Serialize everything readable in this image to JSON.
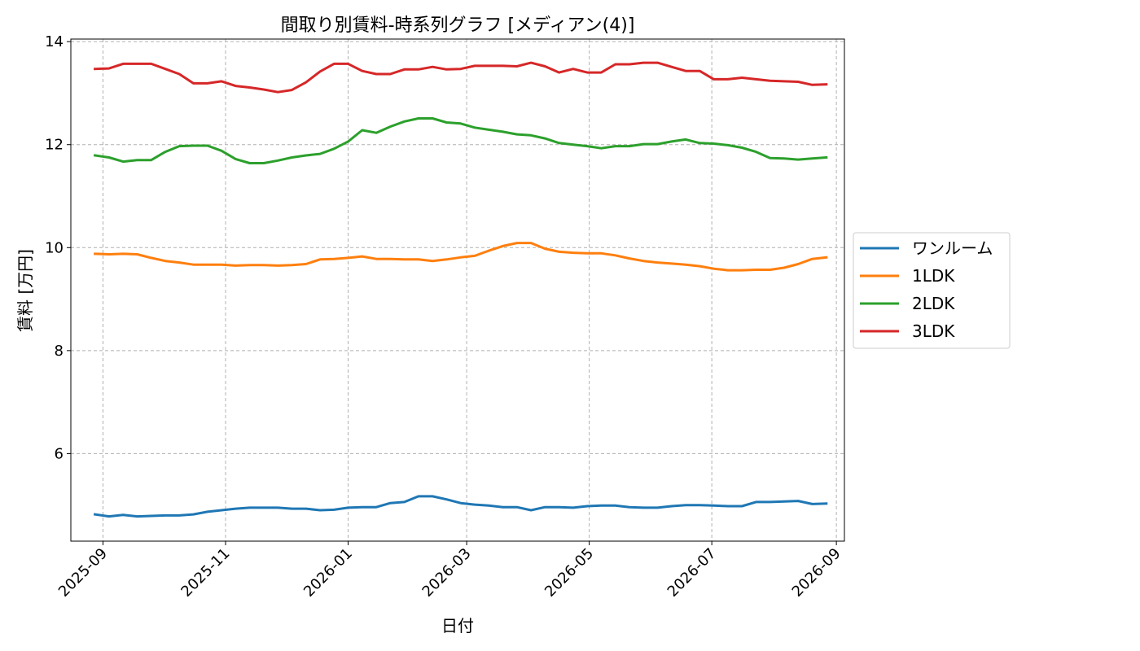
{
  "chart_data": {
    "type": "line",
    "title": "間取り別賃料-時系列グラフ [メディアン(4)]",
    "xlabel": "日付",
    "ylabel": "賃料 [万円]",
    "ylim": [
      4.3,
      14.05
    ],
    "yticks": [
      6,
      8,
      10,
      12,
      14
    ],
    "xlim": [
      "2025-08-16",
      "2026-09-05"
    ],
    "xticks": [
      "2025-09",
      "2025-11",
      "2026-01",
      "2026-03",
      "2026-05",
      "2026-07",
      "2026-09"
    ],
    "grid": true,
    "legend_position": "right-outside",
    "x": [
      "2025-08-28",
      "2025-09-04",
      "2025-09-11",
      "2025-09-18",
      "2025-09-25",
      "2025-10-02",
      "2025-10-09",
      "2025-10-16",
      "2025-10-23",
      "2025-10-30",
      "2025-11-06",
      "2025-11-13",
      "2025-11-20",
      "2025-11-27",
      "2025-12-04",
      "2025-12-11",
      "2025-12-18",
      "2025-12-25",
      "2026-01-01",
      "2026-01-08",
      "2026-01-15",
      "2026-01-22",
      "2026-01-29",
      "2026-02-05",
      "2026-02-12",
      "2026-02-19",
      "2026-02-26",
      "2026-03-05",
      "2026-03-12",
      "2026-03-19",
      "2026-03-26",
      "2026-04-02",
      "2026-04-09",
      "2026-04-16",
      "2026-04-23",
      "2026-04-30",
      "2026-05-07",
      "2026-05-14",
      "2026-05-21",
      "2026-05-28",
      "2026-06-04",
      "2026-06-11",
      "2026-06-18",
      "2026-06-25",
      "2026-07-02",
      "2026-07-09",
      "2026-07-16",
      "2026-07-23",
      "2026-07-30",
      "2026-08-06",
      "2026-08-13",
      "2026-08-20",
      "2026-08-27"
    ],
    "series": [
      {
        "name": "ワンルーム",
        "color": "#1f77b4",
        "values": [
          4.82,
          4.78,
          4.81,
          4.78,
          4.79,
          4.8,
          4.8,
          4.82,
          4.87,
          4.9,
          4.93,
          4.95,
          4.95,
          4.95,
          4.93,
          4.93,
          4.9,
          4.91,
          4.95,
          4.96,
          4.96,
          5.04,
          5.06,
          5.17,
          5.17,
          5.11,
          5.04,
          5.01,
          4.99,
          4.96,
          4.96,
          4.9,
          4.96,
          4.96,
          4.95,
          4.98,
          4.99,
          4.99,
          4.96,
          4.95,
          4.95,
          4.98,
          5.0,
          5.0,
          4.99,
          4.98,
          4.98,
          5.06,
          5.06,
          5.07,
          5.08,
          5.02,
          5.03
        ]
      },
      {
        "name": "1LDK",
        "color": "#ff7f0e",
        "values": [
          9.88,
          9.87,
          9.88,
          9.87,
          9.8,
          9.74,
          9.71,
          9.67,
          9.67,
          9.67,
          9.65,
          9.66,
          9.66,
          9.65,
          9.66,
          9.68,
          9.77,
          9.78,
          9.8,
          9.83,
          9.78,
          9.78,
          9.77,
          9.77,
          9.74,
          9.77,
          9.81,
          9.84,
          9.94,
          10.03,
          10.09,
          10.09,
          9.98,
          9.92,
          9.9,
          9.89,
          9.89,
          9.85,
          9.79,
          9.74,
          9.71,
          9.69,
          9.67,
          9.64,
          9.59,
          9.56,
          9.56,
          9.57,
          9.57,
          9.61,
          9.68,
          9.78,
          9.81
        ]
      },
      {
        "name": "2LDK",
        "color": "#2ca02c",
        "values": [
          11.79,
          11.75,
          11.67,
          11.7,
          11.7,
          11.86,
          11.97,
          11.98,
          11.98,
          11.88,
          11.72,
          11.64,
          11.64,
          11.69,
          11.75,
          11.79,
          11.82,
          11.92,
          12.06,
          12.28,
          12.23,
          12.35,
          12.45,
          12.51,
          12.51,
          12.43,
          12.41,
          12.33,
          12.29,
          12.25,
          12.2,
          12.18,
          12.12,
          12.03,
          12.0,
          11.97,
          11.93,
          11.97,
          11.97,
          12.01,
          12.01,
          12.06,
          12.1,
          12.03,
          12.02,
          11.99,
          11.94,
          11.86,
          11.74,
          11.73,
          11.71,
          11.73,
          11.75
        ]
      },
      {
        "name": "3LDK",
        "color": "#d62728",
        "values": [
          13.47,
          13.48,
          13.57,
          13.57,
          13.57,
          13.47,
          13.37,
          13.19,
          13.19,
          13.23,
          13.14,
          13.11,
          13.07,
          13.02,
          13.06,
          13.21,
          13.42,
          13.57,
          13.57,
          13.43,
          13.37,
          13.37,
          13.46,
          13.46,
          13.51,
          13.46,
          13.47,
          13.53,
          13.53,
          13.53,
          13.52,
          13.59,
          13.52,
          13.4,
          13.47,
          13.4,
          13.4,
          13.56,
          13.56,
          13.59,
          13.59,
          13.51,
          13.43,
          13.43,
          13.27,
          13.27,
          13.3,
          13.27,
          13.24,
          13.23,
          13.22,
          13.16,
          13.17
        ]
      }
    ]
  }
}
